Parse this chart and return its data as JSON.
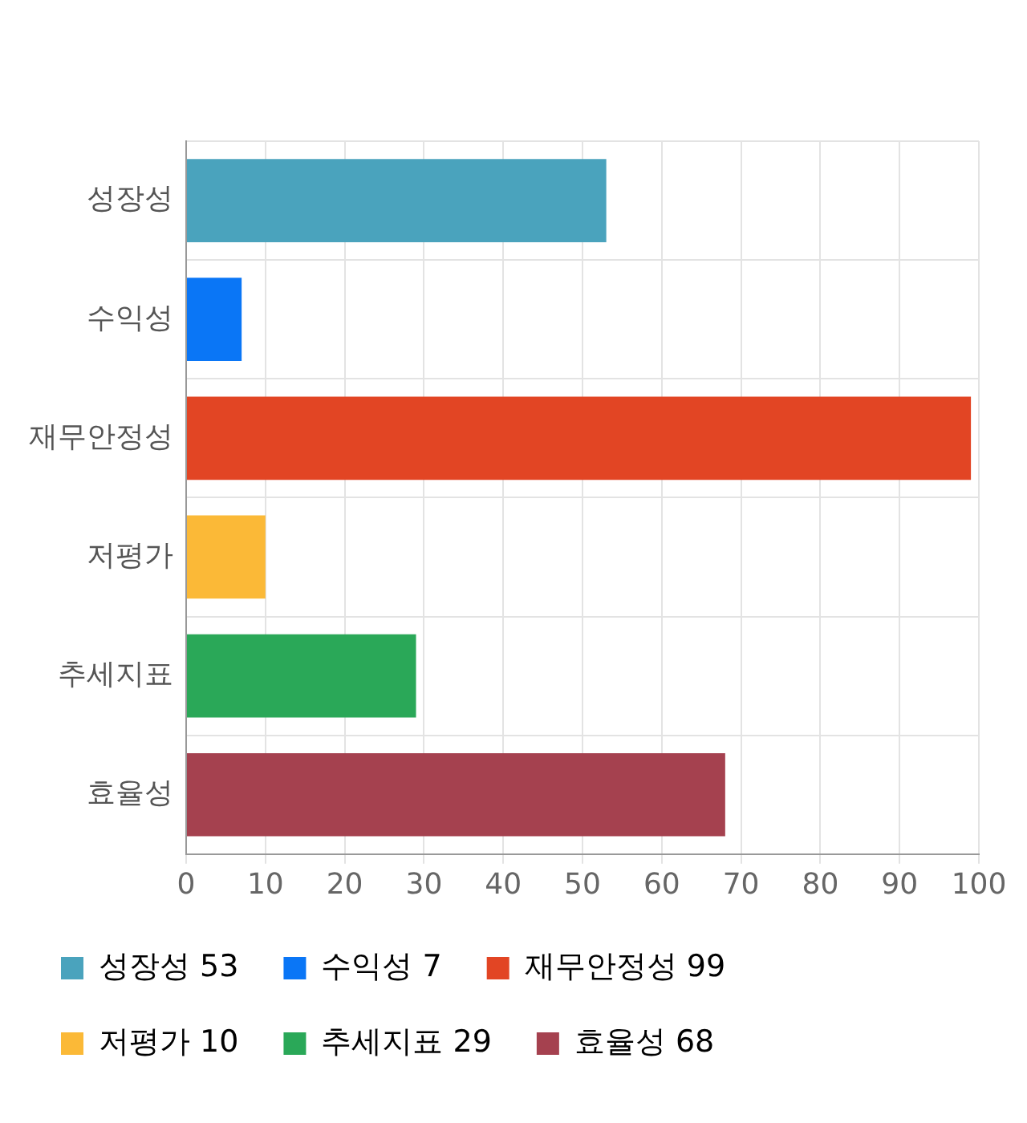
{
  "chart_data": {
    "type": "bar",
    "orientation": "horizontal",
    "categories": [
      "성장성",
      "수익성",
      "재무안정성",
      "저평가",
      "추세지표",
      "효율성"
    ],
    "series": [
      {
        "name": "성장성 53",
        "color": "#4aa3bd",
        "values": [
          53,
          null,
          null,
          null,
          null,
          null
        ]
      },
      {
        "name": "수익성 7",
        "color": "#0a76f6",
        "values": [
          null,
          7,
          null,
          null,
          null,
          null
        ]
      },
      {
        "name": "재무안정성 99",
        "color": "#e24524",
        "values": [
          null,
          null,
          99,
          null,
          null,
          null
        ]
      },
      {
        "name": "저평가 10",
        "color": "#fbb937",
        "values": [
          null,
          null,
          null,
          10,
          null,
          null
        ]
      },
      {
        "name": "추세지표 29",
        "color": "#2aa858",
        "values": [
          null,
          null,
          null,
          null,
          29,
          null
        ]
      },
      {
        "name": "효율성 68",
        "color": "#a5414f",
        "values": [
          null,
          null,
          null,
          null,
          null,
          68
        ]
      }
    ],
    "xlim": [
      0,
      100
    ],
    "xticks": [
      0,
      10,
      20,
      30,
      40,
      50,
      60,
      70,
      80,
      90,
      100
    ],
    "grid": true,
    "legend": "bottom"
  }
}
